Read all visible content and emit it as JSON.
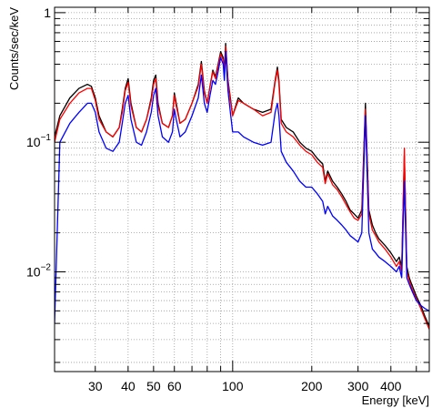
{
  "chart_data": {
    "type": "line",
    "title": "",
    "xlabel": "Energy [keV]",
    "ylabel": "Counts/sec/keV",
    "x_scale": "log",
    "y_scale": "log",
    "xlim": [
      21,
      560
    ],
    "ylim": [
      0.0017,
      1.1
    ],
    "grid": true,
    "legend": "none",
    "x_tick_labels": [
      {
        "value": 30,
        "label": "30"
      },
      {
        "value": 40,
        "label": "40"
      },
      {
        "value": 50,
        "label": "50"
      },
      {
        "value": 60,
        "label": "60"
      },
      {
        "value": 100,
        "label": "100"
      },
      {
        "value": 200,
        "label": "200"
      },
      {
        "value": 300,
        "label": "300"
      },
      {
        "value": 400,
        "label": "400"
      }
    ],
    "y_tick_labels": [
      {
        "value": 1,
        "base": "1",
        "exp": ""
      },
      {
        "value": 0.1,
        "base": "10",
        "exp": "−1"
      },
      {
        "value": 0.01,
        "base": "10",
        "exp": "−2"
      }
    ],
    "series": [
      {
        "color": "#000000",
        "x": [
          21,
          22,
          24,
          26,
          28,
          29,
          30,
          31,
          33,
          35,
          37,
          38,
          39,
          40,
          41,
          43,
          45,
          47,
          49,
          50,
          51,
          52,
          54,
          57,
          59,
          60,
          61,
          63,
          66,
          70,
          74,
          76,
          78,
          80,
          82,
          84,
          86,
          88,
          90,
          92,
          93,
          94,
          96,
          98,
          100,
          105,
          110,
          120,
          130,
          140,
          145,
          148,
          150,
          153,
          160,
          170,
          180,
          190,
          200,
          210,
          220,
          225,
          230,
          240,
          250,
          260,
          270,
          280,
          290,
          300,
          310,
          320,
          330,
          340,
          350,
          360,
          380,
          400,
          420,
          430,
          440,
          450,
          460,
          470,
          480,
          500,
          520,
          540,
          560
        ],
        "y": [
          0.11,
          0.16,
          0.22,
          0.26,
          0.28,
          0.27,
          0.22,
          0.16,
          0.12,
          0.11,
          0.13,
          0.18,
          0.26,
          0.31,
          0.2,
          0.13,
          0.12,
          0.15,
          0.22,
          0.3,
          0.33,
          0.2,
          0.14,
          0.13,
          0.16,
          0.24,
          0.2,
          0.14,
          0.15,
          0.2,
          0.28,
          0.42,
          0.25,
          0.2,
          0.27,
          0.36,
          0.32,
          0.4,
          0.5,
          0.45,
          0.35,
          0.58,
          0.3,
          0.22,
          0.16,
          0.22,
          0.2,
          0.18,
          0.17,
          0.18,
          0.3,
          0.38,
          0.3,
          0.15,
          0.13,
          0.12,
          0.1,
          0.09,
          0.085,
          0.075,
          0.068,
          0.05,
          0.06,
          0.05,
          0.045,
          0.04,
          0.035,
          0.03,
          0.028,
          0.026,
          0.03,
          0.2,
          0.03,
          0.023,
          0.02,
          0.018,
          0.016,
          0.014,
          0.012,
          0.013,
          0.011,
          0.08,
          0.011,
          0.009,
          0.008,
          0.0065,
          0.0055,
          0.0045,
          0.0038
        ]
      },
      {
        "color": "#ff0000",
        "x": [
          21,
          22,
          24,
          26,
          28,
          29,
          30,
          31,
          33,
          35,
          37,
          38,
          39,
          40,
          41,
          43,
          45,
          47,
          49,
          50,
          51,
          52,
          54,
          57,
          59,
          60,
          61,
          63,
          66,
          70,
          74,
          76,
          78,
          80,
          82,
          84,
          86,
          88,
          90,
          92,
          93,
          94,
          96,
          98,
          100,
          105,
          110,
          120,
          130,
          140,
          145,
          148,
          150,
          153,
          160,
          170,
          180,
          190,
          200,
          210,
          220,
          225,
          230,
          240,
          250,
          260,
          270,
          280,
          290,
          300,
          310,
          320,
          330,
          340,
          350,
          360,
          380,
          400,
          420,
          430,
          440,
          450,
          460,
          470,
          480,
          500,
          520,
          540,
          560
        ],
        "y": [
          0.1,
          0.15,
          0.2,
          0.24,
          0.26,
          0.26,
          0.21,
          0.15,
          0.12,
          0.11,
          0.13,
          0.17,
          0.25,
          0.29,
          0.19,
          0.13,
          0.12,
          0.15,
          0.21,
          0.28,
          0.31,
          0.19,
          0.14,
          0.13,
          0.16,
          0.23,
          0.19,
          0.14,
          0.15,
          0.2,
          0.27,
          0.4,
          0.24,
          0.2,
          0.27,
          0.35,
          0.31,
          0.39,
          0.48,
          0.43,
          0.34,
          0.55,
          0.29,
          0.21,
          0.16,
          0.21,
          0.2,
          0.18,
          0.16,
          0.17,
          0.29,
          0.36,
          0.28,
          0.14,
          0.12,
          0.11,
          0.095,
          0.085,
          0.08,
          0.07,
          0.064,
          0.048,
          0.057,
          0.047,
          0.043,
          0.038,
          0.033,
          0.029,
          0.026,
          0.025,
          0.028,
          0.18,
          0.028,
          0.021,
          0.019,
          0.017,
          0.015,
          0.013,
          0.011,
          0.012,
          0.01,
          0.09,
          0.01,
          0.0085,
          0.0075,
          0.0062,
          0.0052,
          0.0043,
          0.0036
        ]
      },
      {
        "color": "#0000ff",
        "x": [
          21,
          22,
          24,
          26,
          28,
          29,
          30,
          31,
          33,
          35,
          37,
          38,
          39,
          40,
          41,
          43,
          45,
          47,
          49,
          50,
          51,
          52,
          54,
          57,
          59,
          60,
          61,
          63,
          66,
          70,
          74,
          76,
          78,
          80,
          82,
          84,
          86,
          88,
          90,
          92,
          93,
          94,
          96,
          98,
          100,
          105,
          110,
          120,
          130,
          140,
          145,
          148,
          150,
          153,
          160,
          170,
          180,
          190,
          200,
          210,
          220,
          225,
          230,
          240,
          250,
          260,
          270,
          280,
          290,
          300,
          310,
          320,
          330,
          340,
          350,
          360,
          380,
          400,
          420,
          430,
          440,
          450,
          460,
          470,
          480,
          500,
          520,
          540,
          560
        ],
        "y": [
          0.004,
          0.1,
          0.14,
          0.17,
          0.2,
          0.2,
          0.17,
          0.12,
          0.09,
          0.085,
          0.1,
          0.14,
          0.2,
          0.23,
          0.15,
          0.1,
          0.095,
          0.12,
          0.17,
          0.23,
          0.26,
          0.16,
          0.11,
          0.1,
          0.12,
          0.18,
          0.15,
          0.11,
          0.12,
          0.16,
          0.22,
          0.33,
          0.2,
          0.17,
          0.23,
          0.3,
          0.28,
          0.35,
          0.45,
          0.4,
          0.3,
          0.5,
          0.25,
          0.17,
          0.12,
          0.12,
          0.11,
          0.1,
          0.095,
          0.1,
          0.17,
          0.2,
          0.16,
          0.085,
          0.07,
          0.06,
          0.05,
          0.045,
          0.045,
          0.04,
          0.035,
          0.028,
          0.032,
          0.027,
          0.025,
          0.023,
          0.021,
          0.019,
          0.018,
          0.017,
          0.02,
          0.16,
          0.02,
          0.015,
          0.014,
          0.013,
          0.012,
          0.011,
          0.01,
          0.011,
          0.009,
          0.05,
          0.009,
          0.008,
          0.0072,
          0.006,
          0.0055,
          0.0052,
          0.005
        ]
      }
    ]
  }
}
